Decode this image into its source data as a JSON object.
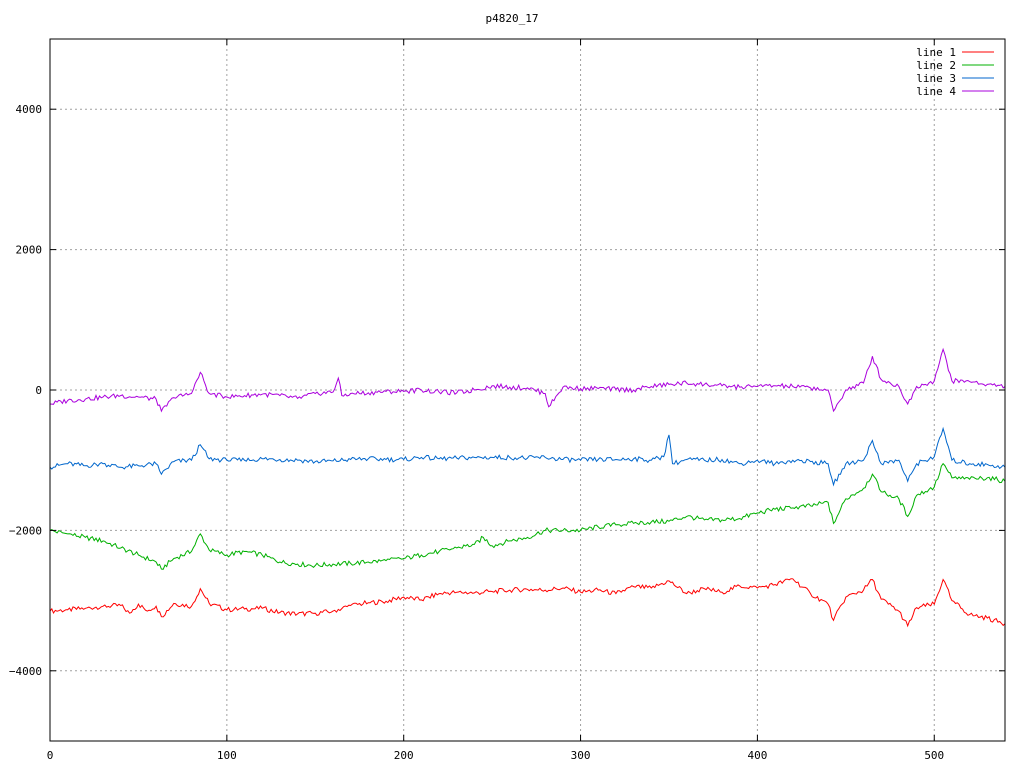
{
  "chart_data": {
    "type": "line",
    "title": "p4820_17",
    "xlabel": "",
    "ylabel": "",
    "xlim": [
      0,
      540
    ],
    "ylim": [
      -5000,
      5000
    ],
    "x_ticks": [
      0,
      100,
      200,
      300,
      400,
      500
    ],
    "y_ticks": [
      -4000,
      -2000,
      0,
      2000,
      4000
    ],
    "y_tick_labels": [
      "−4000",
      "−2000",
      "0",
      "2000",
      "4000"
    ],
    "grid": true,
    "legend_position": "top-right",
    "series": [
      {
        "name": "line 1",
        "color": "#ff0000",
        "points": [
          [
            0,
            -3150
          ],
          [
            10,
            -3130
          ],
          [
            20,
            -3110
          ],
          [
            30,
            -3080
          ],
          [
            40,
            -3070
          ],
          [
            45,
            -3180
          ],
          [
            50,
            -3050
          ],
          [
            55,
            -3150
          ],
          [
            60,
            -3080
          ],
          [
            63,
            -3230
          ],
          [
            70,
            -3040
          ],
          [
            80,
            -3080
          ],
          [
            85,
            -2830
          ],
          [
            90,
            -3040
          ],
          [
            100,
            -3130
          ],
          [
            110,
            -3120
          ],
          [
            120,
            -3110
          ],
          [
            130,
            -3170
          ],
          [
            140,
            -3190
          ],
          [
            150,
            -3180
          ],
          [
            160,
            -3150
          ],
          [
            170,
            -3070
          ],
          [
            180,
            -3030
          ],
          [
            190,
            -3010
          ],
          [
            200,
            -2950
          ],
          [
            210,
            -2990
          ],
          [
            220,
            -2900
          ],
          [
            230,
            -2880
          ],
          [
            240,
            -2890
          ],
          [
            250,
            -2870
          ],
          [
            260,
            -2850
          ],
          [
            270,
            -2840
          ],
          [
            280,
            -2850
          ],
          [
            290,
            -2820
          ],
          [
            300,
            -2880
          ],
          [
            310,
            -2850
          ],
          [
            320,
            -2900
          ],
          [
            330,
            -2800
          ],
          [
            340,
            -2820
          ],
          [
            350,
            -2720
          ],
          [
            360,
            -2900
          ],
          [
            370,
            -2830
          ],
          [
            380,
            -2880
          ],
          [
            390,
            -2790
          ],
          [
            400,
            -2820
          ],
          [
            410,
            -2770
          ],
          [
            420,
            -2690
          ],
          [
            430,
            -2900
          ],
          [
            440,
            -3050
          ],
          [
            443,
            -3280
          ],
          [
            450,
            -2950
          ],
          [
            460,
            -2850
          ],
          [
            465,
            -2700
          ],
          [
            470,
            -2980
          ],
          [
            480,
            -3150
          ],
          [
            485,
            -3360
          ],
          [
            490,
            -3100
          ],
          [
            500,
            -3050
          ],
          [
            505,
            -2700
          ],
          [
            510,
            -3000
          ],
          [
            520,
            -3200
          ],
          [
            530,
            -3250
          ],
          [
            540,
            -3330
          ]
        ]
      },
      {
        "name": "line 2",
        "color": "#00b000",
        "points": [
          [
            0,
            -2000
          ],
          [
            10,
            -2050
          ],
          [
            20,
            -2100
          ],
          [
            30,
            -2150
          ],
          [
            40,
            -2250
          ],
          [
            50,
            -2350
          ],
          [
            60,
            -2450
          ],
          [
            63,
            -2550
          ],
          [
            70,
            -2400
          ],
          [
            80,
            -2300
          ],
          [
            85,
            -2050
          ],
          [
            90,
            -2280
          ],
          [
            100,
            -2350
          ],
          [
            110,
            -2300
          ],
          [
            120,
            -2350
          ],
          [
            130,
            -2450
          ],
          [
            140,
            -2480
          ],
          [
            150,
            -2500
          ],
          [
            160,
            -2480
          ],
          [
            170,
            -2470
          ],
          [
            180,
            -2450
          ],
          [
            190,
            -2430
          ],
          [
            200,
            -2400
          ],
          [
            210,
            -2350
          ],
          [
            220,
            -2300
          ],
          [
            230,
            -2250
          ],
          [
            240,
            -2200
          ],
          [
            245,
            -2100
          ],
          [
            250,
            -2220
          ],
          [
            260,
            -2150
          ],
          [
            270,
            -2100
          ],
          [
            280,
            -2000
          ],
          [
            290,
            -2000
          ],
          [
            300,
            -2000
          ],
          [
            310,
            -1950
          ],
          [
            320,
            -1920
          ],
          [
            330,
            -1900
          ],
          [
            340,
            -1880
          ],
          [
            350,
            -1870
          ],
          [
            360,
            -1800
          ],
          [
            370,
            -1850
          ],
          [
            380,
            -1850
          ],
          [
            390,
            -1830
          ],
          [
            400,
            -1750
          ],
          [
            410,
            -1700
          ],
          [
            420,
            -1680
          ],
          [
            430,
            -1650
          ],
          [
            440,
            -1600
          ],
          [
            443,
            -1900
          ],
          [
            450,
            -1550
          ],
          [
            460,
            -1400
          ],
          [
            465,
            -1200
          ],
          [
            470,
            -1450
          ],
          [
            480,
            -1550
          ],
          [
            485,
            -1800
          ],
          [
            490,
            -1500
          ],
          [
            500,
            -1380
          ],
          [
            505,
            -1050
          ],
          [
            510,
            -1250
          ],
          [
            520,
            -1270
          ],
          [
            530,
            -1250
          ],
          [
            540,
            -1300
          ]
        ]
      },
      {
        "name": "line 3",
        "color": "#0066cc",
        "points": [
          [
            0,
            -1100
          ],
          [
            10,
            -1050
          ],
          [
            20,
            -1080
          ],
          [
            30,
            -1050
          ],
          [
            40,
            -1100
          ],
          [
            50,
            -1080
          ],
          [
            60,
            -1050
          ],
          [
            63,
            -1200
          ],
          [
            70,
            -1020
          ],
          [
            80,
            -1000
          ],
          [
            85,
            -780
          ],
          [
            90,
            -980
          ],
          [
            100,
            -1000
          ],
          [
            110,
            -1000
          ],
          [
            120,
            -980
          ],
          [
            130,
            -990
          ],
          [
            140,
            -1000
          ],
          [
            150,
            -1020
          ],
          [
            160,
            -1010
          ],
          [
            170,
            -990
          ],
          [
            180,
            -980
          ],
          [
            190,
            -990
          ],
          [
            200,
            -990
          ],
          [
            210,
            -960
          ],
          [
            220,
            -980
          ],
          [
            230,
            -970
          ],
          [
            240,
            -960
          ],
          [
            250,
            -960
          ],
          [
            260,
            -960
          ],
          [
            270,
            -970
          ],
          [
            280,
            -960
          ],
          [
            290,
            -990
          ],
          [
            300,
            -1000
          ],
          [
            310,
            -990
          ],
          [
            320,
            -990
          ],
          [
            330,
            -980
          ],
          [
            340,
            -1000
          ],
          [
            347,
            -950
          ],
          [
            350,
            -640
          ],
          [
            352,
            -1050
          ],
          [
            360,
            -990
          ],
          [
            370,
            -1000
          ],
          [
            380,
            -990
          ],
          [
            390,
            -1050
          ],
          [
            400,
            -1000
          ],
          [
            410,
            -1050
          ],
          [
            420,
            -1000
          ],
          [
            430,
            -1020
          ],
          [
            440,
            -1050
          ],
          [
            443,
            -1350
          ],
          [
            450,
            -1050
          ],
          [
            460,
            -1000
          ],
          [
            465,
            -720
          ],
          [
            470,
            -1050
          ],
          [
            480,
            -1000
          ],
          [
            485,
            -1300
          ],
          [
            490,
            -1050
          ],
          [
            500,
            -950
          ],
          [
            505,
            -550
          ],
          [
            510,
            -1000
          ],
          [
            520,
            -1050
          ],
          [
            530,
            -1060
          ],
          [
            540,
            -1100
          ]
        ]
      },
      {
        "name": "line 4",
        "color": "#aa00dd",
        "points": [
          [
            0,
            -200
          ],
          [
            10,
            -150
          ],
          [
            20,
            -130
          ],
          [
            30,
            -100
          ],
          [
            40,
            -80
          ],
          [
            50,
            -100
          ],
          [
            60,
            -130
          ],
          [
            63,
            -300
          ],
          [
            70,
            -110
          ],
          [
            80,
            -50
          ],
          [
            85,
            250
          ],
          [
            90,
            -50
          ],
          [
            100,
            -100
          ],
          [
            110,
            -80
          ],
          [
            120,
            -60
          ],
          [
            130,
            -80
          ],
          [
            140,
            -120
          ],
          [
            150,
            -50
          ],
          [
            160,
            -30
          ],
          [
            163,
            170
          ],
          [
            165,
            -80
          ],
          [
            170,
            -50
          ],
          [
            180,
            -40
          ],
          [
            190,
            -20
          ],
          [
            200,
            -20
          ],
          [
            210,
            0
          ],
          [
            220,
            -30
          ],
          [
            230,
            -40
          ],
          [
            240,
            0
          ],
          [
            250,
            60
          ],
          [
            260,
            40
          ],
          [
            270,
            30
          ],
          [
            280,
            -50
          ],
          [
            282,
            -240
          ],
          [
            290,
            40
          ],
          [
            300,
            20
          ],
          [
            310,
            20
          ],
          [
            320,
            10
          ],
          [
            330,
            0
          ],
          [
            340,
            50
          ],
          [
            350,
            80
          ],
          [
            360,
            100
          ],
          [
            370,
            80
          ],
          [
            380,
            60
          ],
          [
            390,
            40
          ],
          [
            400,
            50
          ],
          [
            410,
            60
          ],
          [
            420,
            50
          ],
          [
            430,
            30
          ],
          [
            440,
            0
          ],
          [
            443,
            -300
          ],
          [
            450,
            0
          ],
          [
            460,
            100
          ],
          [
            465,
            480
          ],
          [
            470,
            150
          ],
          [
            480,
            50
          ],
          [
            485,
            -200
          ],
          [
            490,
            50
          ],
          [
            500,
            130
          ],
          [
            505,
            580
          ],
          [
            510,
            130
          ],
          [
            520,
            120
          ],
          [
            530,
            80
          ],
          [
            540,
            50
          ]
        ]
      }
    ]
  }
}
